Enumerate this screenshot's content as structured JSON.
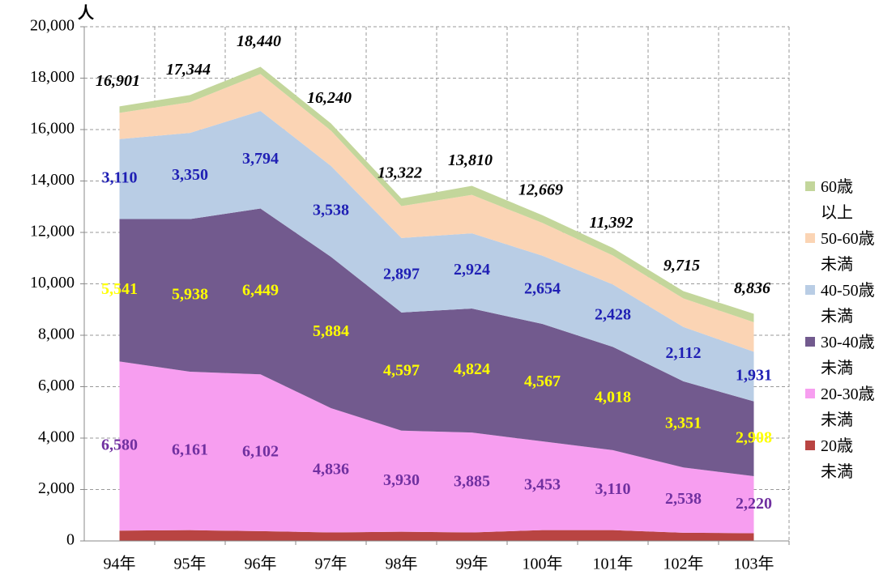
{
  "chart_data": {
    "type": "stacked_area",
    "y_unit_label": "人",
    "categories": [
      "94年",
      "95年",
      "96年",
      "97年",
      "98年",
      "99年",
      "100年",
      "101年",
      "102年",
      "103年"
    ],
    "ylim": [
      0,
      20000
    ],
    "yticks": [
      0,
      {
        "value": 2000,
        "label": "2,000"
      },
      {
        "value": 4000,
        "label": "4,000"
      },
      {
        "value": 6000,
        "label": "6,000"
      },
      {
        "value": 8000,
        "label": "8,000"
      },
      {
        "value": 10000,
        "label": "10,000"
      },
      {
        "value": 12000,
        "label": "12,000"
      },
      {
        "value": 14000,
        "label": "14,000"
      },
      {
        "value": 16000,
        "label": "16,000"
      },
      {
        "value": 18000,
        "label": "18,000"
      },
      {
        "value": 20000,
        "label": "20,000"
      }
    ],
    "grid": true,
    "legend": "right",
    "series": [
      {
        "name": "20歳未満",
        "color": "#b94442",
        "values": [
          400,
          420,
          380,
          330,
          360,
          330,
          420,
          420,
          320,
          300
        ]
      },
      {
        "name": "20-30歳未満",
        "color": "#f79ef0",
        "label_color": "#7030a0",
        "values": [
          6580,
          6161,
          6102,
          4836,
          3930,
          3885,
          3453,
          3110,
          2538,
          2220
        ],
        "value_labels": [
          "6,580",
          "6,161",
          "6,102",
          "4,836",
          "3,930",
          "3,885",
          "3,453",
          "3,110",
          "2,538",
          "2,220"
        ]
      },
      {
        "name": "30-40歳未満",
        "color": "#725a8e",
        "label_color": "#ffff00",
        "values": [
          5541,
          5938,
          6449,
          5884,
          4597,
          4824,
          4567,
          4018,
          3351,
          2908
        ],
        "value_labels": [
          "5,541",
          "5,938",
          "6,449",
          "5,884",
          "4,597",
          "4,824",
          "4,567",
          "4,018",
          "3,351",
          "2,908"
        ]
      },
      {
        "name": "40-50歳未満",
        "color": "#b9cde5",
        "label_color": "#1f1fb4",
        "values": [
          3110,
          3350,
          3794,
          3538,
          2897,
          2924,
          2654,
          2428,
          2112,
          1931
        ],
        "value_labels": [
          "3,110",
          "3,350",
          "3,794",
          "3,538",
          "2,897",
          "2,924",
          "2,654",
          "2,428",
          "2,112",
          "1,931"
        ]
      },
      {
        "name": "50-60歳未満",
        "color": "#fbd4b4",
        "values": [
          1020,
          1195,
          1435,
          1372,
          1238,
          1497,
          1275,
          1126,
          1114,
          1147
        ]
      },
      {
        "name": "60歳以上",
        "color": "#c3d69b",
        "values": [
          250,
          280,
          280,
          280,
          300,
          350,
          300,
          290,
          280,
          330
        ]
      }
    ],
    "totals": [
      16901,
      17344,
      18440,
      16240,
      13322,
      13810,
      12669,
      11392,
      9715,
      8836
    ],
    "total_labels": [
      "16,901",
      "17,344",
      "18,440",
      "16,240",
      "13,322",
      "13,810",
      "12,669",
      "11,392",
      "9,715",
      "8,836"
    ]
  }
}
